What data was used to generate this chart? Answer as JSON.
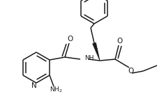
{
  "bg_color": "#ffffff",
  "line_color": "#1a1a1a",
  "line_width": 1.1,
  "font_size": 6.5,
  "figsize": [
    2.25,
    1.55
  ],
  "dpi": 100,
  "xlim": [
    0,
    225
  ],
  "ylim": [
    0,
    155
  ]
}
